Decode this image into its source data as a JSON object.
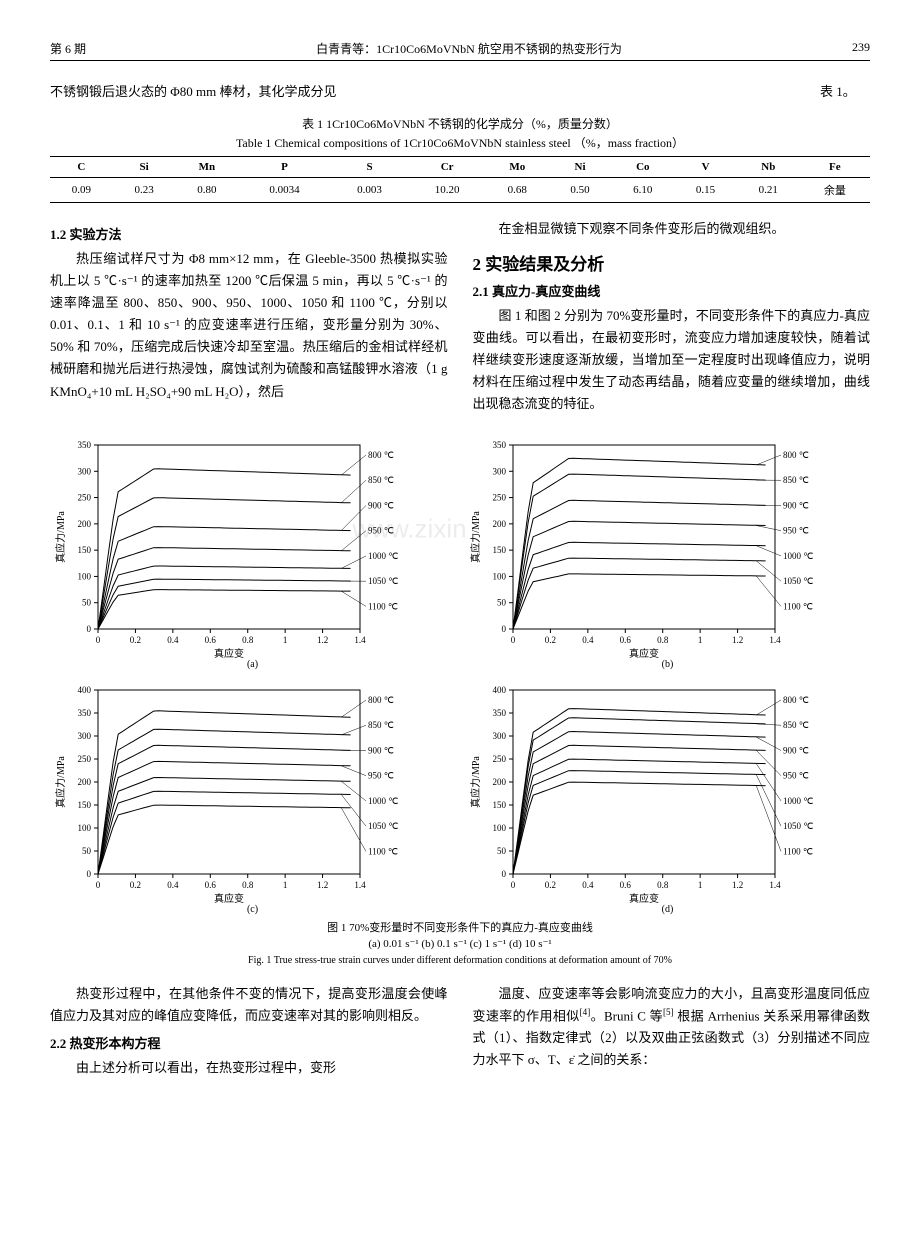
{
  "header": {
    "issue": "第 6 期",
    "title": "白青青等：1Cr10Co6MoVNbN 航空用不锈钢的热变形行为",
    "page": "239"
  },
  "intro": {
    "left": "不锈钢锻后退火态的 Φ80 mm 棒材，其化学成分见",
    "right": "表 1。"
  },
  "table1": {
    "caption_cn": "表 1   1Cr10Co6MoVNbN 不锈钢的化学成分（%，质量分数）",
    "caption_en": "Table 1   Chemical compositions of 1Cr10Co6MoVNbN stainless steel （%，mass fraction）",
    "headers": [
      "C",
      "Si",
      "Mn",
      "P",
      "S",
      "Cr",
      "Mo",
      "Ni",
      "Co",
      "V",
      "Nb",
      "Fe"
    ],
    "values": [
      "0.09",
      "0.23",
      "0.80",
      "0.0034",
      "0.003",
      "10.20",
      "0.68",
      "0.50",
      "6.10",
      "0.15",
      "0.21",
      "余量"
    ]
  },
  "sec12": {
    "heading": "1.2  实验方法",
    "para": "热压缩试样尺寸为 Φ8 mm×12 mm，在 Gleeble-3500 热模拟实验机上以 5 ℃·s⁻¹ 的速率加热至 1200 ℃后保温 5 min，再以 5 ℃·s⁻¹ 的速率降温至 800、850、900、950、1000、1050 和 1100 ℃，分别以 0.01、0.1、1 和 10 s⁻¹ 的应变速率进行压缩，变形量分别为 30%、50% 和 70%，压缩完成后快速冷却至室温。热压缩后的金相试样经机械研磨和抛光后进行热浸蚀，腐蚀试剂为硫酸和高锰酸钾水溶液（1 g KMnO₄+10 mL H₂SO₄+90 mL H₂O），然后"
  },
  "right_top": {
    "para": "在金相显微镜下观察不同条件变形后的微观组织。"
  },
  "sec2": {
    "heading": "2   实验结果及分析"
  },
  "sec21": {
    "heading": "2.1  真应力-真应变曲线",
    "para": "图 1 和图 2 分别为 70%变形量时，不同变形条件下的真应力-真应变曲线。可以看出，在最初变形时，流变应力增加速度较快，随着试样继续变形速度逐渐放缓，当增加至一定程度时出现峰值应力，说明材料在压缩过程中发生了动态再结晶，随着应变量的继续增加，曲线出现稳态流变的特征。"
  },
  "charts": {
    "xlabel": "真应变",
    "ylabel": "真应力/MPa",
    "x_ticks": [
      0,
      0.2,
      0.4,
      0.6,
      0.8,
      1.0,
      1.2,
      1.4
    ],
    "series_labels": [
      "800 ℃",
      "850 ℃",
      "900 ℃",
      "950 ℃",
      "1000 ℃",
      "1050 ℃",
      "1100 ℃"
    ],
    "line_color": "#000000",
    "axis_color": "#000000",
    "background": "#ffffff",
    "font_size_axis": 9,
    "font_size_label": 10,
    "panels": [
      {
        "id": "a",
        "sublabel": "(a)",
        "y_ticks": [
          0,
          50,
          100,
          150,
          200,
          250,
          300,
          350
        ],
        "ymax": 350,
        "peaks": [
          305,
          250,
          195,
          155,
          120,
          95,
          75
        ]
      },
      {
        "id": "b",
        "sublabel": "(b)",
        "y_ticks": [
          0,
          50,
          100,
          150,
          200,
          250,
          300,
          350
        ],
        "ymax": 350,
        "peaks": [
          325,
          295,
          245,
          205,
          165,
          135,
          105
        ]
      },
      {
        "id": "c",
        "sublabel": "(c)",
        "y_ticks": [
          0,
          50,
          100,
          150,
          200,
          250,
          300,
          350,
          400
        ],
        "ymax": 400,
        "peaks": [
          355,
          315,
          280,
          245,
          210,
          180,
          150
        ]
      },
      {
        "id": "d",
        "sublabel": "(d)",
        "y_ticks": [
          0,
          50,
          100,
          150,
          200,
          250,
          300,
          350,
          400
        ],
        "ymax": 400,
        "peaks": [
          360,
          340,
          310,
          280,
          250,
          225,
          200
        ]
      }
    ]
  },
  "fig1": {
    "caption_line1": "图 1   70%变形量时不同变形条件下的真应力-真应变曲线",
    "caption_line2": "(a) 0.01 s⁻¹     (b) 0.1 s⁻¹     (c) 1 s⁻¹     (d) 10 s⁻¹",
    "caption_en": "Fig. 1   True stress-true strain curves under different deformation conditions at deformation amount of 70%"
  },
  "bottom_left": {
    "para1": "热变形过程中，在其他条件不变的情况下，提高变形温度会使峰值应力及其对应的峰值应变降低，而应变速率对其的影响则相反。",
    "heading22": "2.2  热变形本构方程",
    "para2": "由上述分析可以看出，在热变形过程中，变形"
  },
  "bottom_right": {
    "para": "温度、应变速率等会影响流变应力的大小，且高变形温度同低应变速率的作用相似[4]。Bruni C 等[5] 根据 Arrhenius 关系采用幂律函数式（1）、指数定律式（2）以及双曲正弦函数式（3）分别描述不同应力水平下 σ、T、ε̇ 之间的关系："
  },
  "watermark": "www.zixin.com.cn"
}
